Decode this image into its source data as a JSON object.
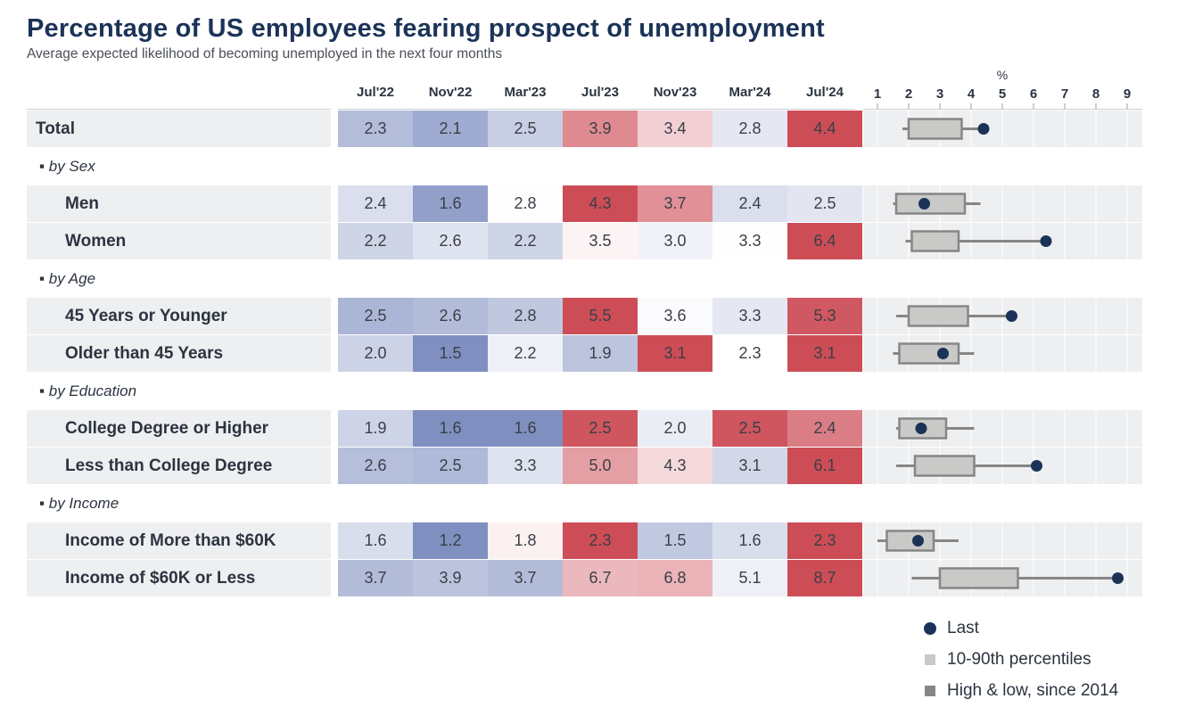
{
  "chart_data": {
    "type": "table",
    "title": "Percentage of US employees fearing prospect of unemployment",
    "subtitle": "Average expected likelihood of becoming unemployed in the next four months",
    "columns": [
      "Jul'22",
      "Nov'22",
      "Mar'23",
      "Jul'23",
      "Nov'23",
      "Mar'24",
      "Jul'24"
    ],
    "axis": {
      "unit": "%",
      "ticks": [
        "1",
        "2",
        "3",
        "4",
        "5",
        "6",
        "7",
        "8",
        "9"
      ],
      "min": 1,
      "max": 9
    },
    "rows": [
      {
        "kind": "row",
        "label": "Total",
        "total": true,
        "values": [
          "2.3",
          "2.1",
          "2.5",
          "3.9",
          "3.4",
          "2.8",
          "4.4"
        ],
        "box": {
          "low": 1.8,
          "p10": 2.0,
          "p90": 3.7,
          "high": 4.4,
          "last": 4.4
        }
      },
      {
        "kind": "group",
        "label": "▪ by Sex"
      },
      {
        "kind": "row",
        "label": "Men",
        "values": [
          "2.4",
          "1.6",
          "2.8",
          "4.3",
          "3.7",
          "2.4",
          "2.5"
        ],
        "box": {
          "low": 1.5,
          "p10": 1.6,
          "p90": 3.8,
          "high": 4.3,
          "last": 2.5
        }
      },
      {
        "kind": "row",
        "label": "Women",
        "values": [
          "2.2",
          "2.6",
          "2.2",
          "3.5",
          "3.0",
          "3.3",
          "6.4"
        ],
        "box": {
          "low": 1.9,
          "p10": 2.1,
          "p90": 3.6,
          "high": 6.4,
          "last": 6.4
        }
      },
      {
        "kind": "group",
        "label": "▪ by Age"
      },
      {
        "kind": "row",
        "label": "45 Years or Younger",
        "values": [
          "2.5",
          "2.6",
          "2.8",
          "5.5",
          "3.6",
          "3.3",
          "5.3"
        ],
        "box": {
          "low": 1.6,
          "p10": 2.0,
          "p90": 3.9,
          "high": 5.3,
          "last": 5.3
        }
      },
      {
        "kind": "row",
        "label": "Older than 45 Years",
        "values": [
          "2.0",
          "1.5",
          "2.2",
          "1.9",
          "3.1",
          "2.3",
          "3.1"
        ],
        "box": {
          "low": 1.5,
          "p10": 1.7,
          "p90": 3.6,
          "high": 4.1,
          "last": 3.1
        }
      },
      {
        "kind": "group",
        "label": "▪ by Education"
      },
      {
        "kind": "row",
        "label": "College Degree or Higher",
        "values": [
          "1.9",
          "1.6",
          "1.6",
          "2.5",
          "2.0",
          "2.5",
          "2.4"
        ],
        "box": {
          "low": 1.6,
          "p10": 1.7,
          "p90": 3.2,
          "high": 4.1,
          "last": 2.4
        }
      },
      {
        "kind": "row",
        "label": "Less than College Degree",
        "values": [
          "2.6",
          "2.5",
          "3.3",
          "5.0",
          "4.3",
          "3.1",
          "6.1"
        ],
        "box": {
          "low": 1.6,
          "p10": 2.2,
          "p90": 4.1,
          "high": 6.1,
          "last": 6.1
        }
      },
      {
        "kind": "group",
        "label": "▪ by Income"
      },
      {
        "kind": "row",
        "label": "Income of More than $60K",
        "values": [
          "1.6",
          "1.2",
          "1.8",
          "2.3",
          "1.5",
          "1.6",
          "2.3"
        ],
        "box": {
          "low": 1.0,
          "p10": 1.3,
          "p90": 2.8,
          "high": 3.6,
          "last": 2.3
        }
      },
      {
        "kind": "row",
        "label": "Income of $60K or Less",
        "values": [
          "3.7",
          "3.9",
          "3.7",
          "6.7",
          "6.8",
          "5.1",
          "8.7"
        ],
        "box": {
          "low": 2.1,
          "p10": 3.0,
          "p90": 5.5,
          "high": 8.7,
          "last": 8.7
        }
      }
    ],
    "legend": [
      {
        "key": "last",
        "label": "Last"
      },
      {
        "key": "range",
        "label": "10-90th percentiles"
      },
      {
        "key": "hilo",
        "label": "High & low, since 2014"
      }
    ]
  },
  "colors": {
    "title": "#1b3358",
    "dot": "#1b3358",
    "box_fill": "#c9c9c7",
    "box_stroke": "#868686",
    "blue_deep": "#7f8fc0",
    "red_deep": "#cd4d57",
    "neutral": "#ffffff"
  }
}
